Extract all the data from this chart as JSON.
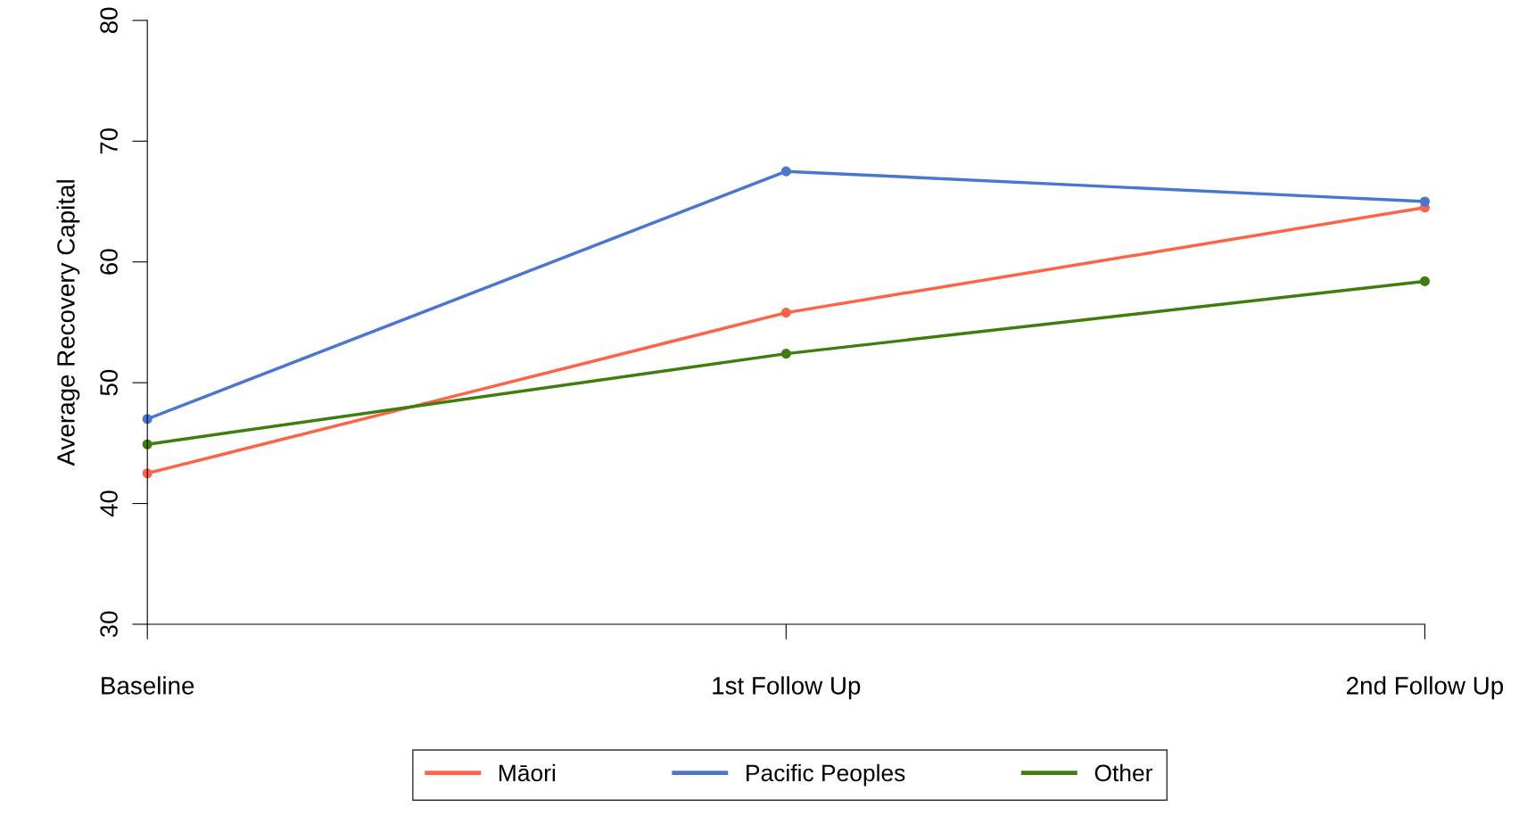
{
  "chart_data": {
    "type": "line",
    "ylabel": "Average Recovery Capital",
    "categories": [
      "Baseline",
      "1st Follow Up",
      "2nd Follow Up"
    ],
    "series": [
      {
        "name": "Māori",
        "color": "#ff6347",
        "values": [
          42.5,
          55.8,
          64.5
        ]
      },
      {
        "name": "Pacific Peoples",
        "color": "#4a76d0",
        "values": [
          47.0,
          67.5,
          65.0
        ]
      },
      {
        "name": "Other",
        "color": "#3e7d0e",
        "values": [
          44.9,
          52.4,
          58.4
        ]
      }
    ],
    "ylim": [
      30,
      80
    ],
    "yticks": [
      30,
      40,
      50,
      60,
      70,
      80
    ],
    "grid": false,
    "legend": "bottom",
    "marker": "circle",
    "line_style": "solid"
  }
}
